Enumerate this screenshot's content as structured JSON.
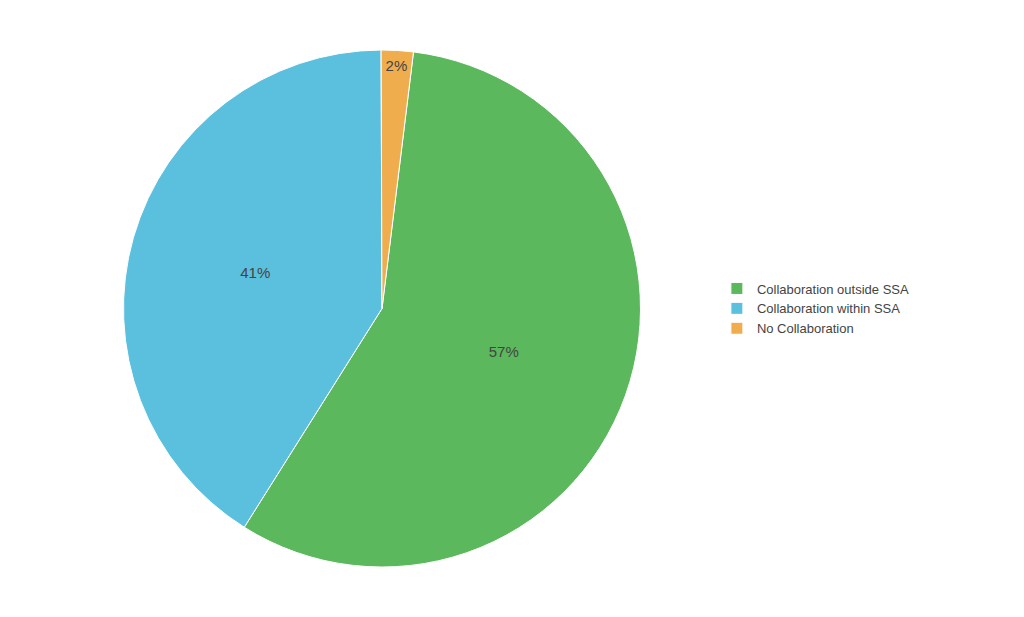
{
  "chart_data": {
    "type": "pie",
    "categories": [
      "Collaboration outside SSA",
      "Collaboration within SSA",
      "No Collaboration"
    ],
    "values": [
      57,
      41,
      2
    ],
    "value_labels": [
      "57%",
      "41%",
      "2%"
    ],
    "colors": [
      "#5cb85c",
      "#5bc0de",
      "#f0ad4e"
    ],
    "data_labels": true,
    "legend": "right"
  }
}
